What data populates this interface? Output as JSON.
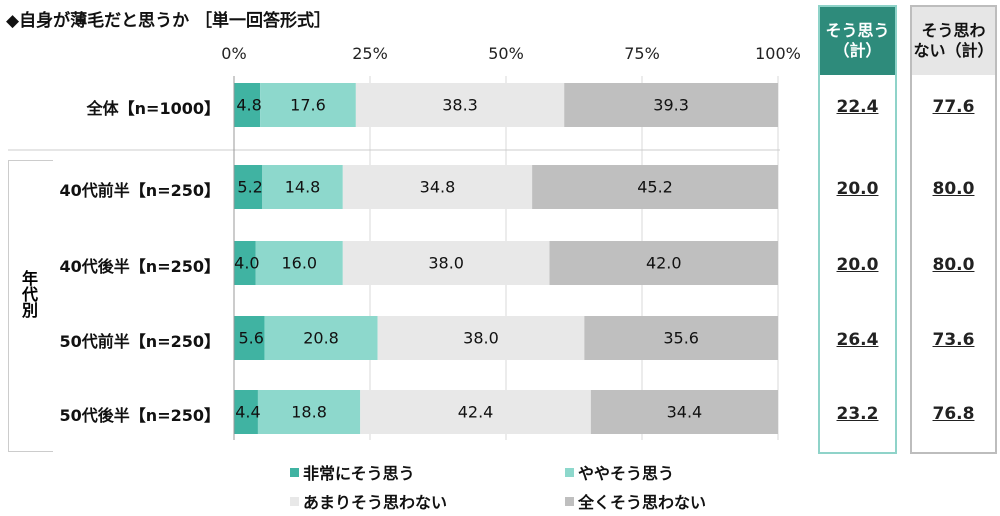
{
  "chart_data": {
    "type": "bar",
    "orientation": "horizontal",
    "stacked": true,
    "title": "◆自身が薄毛だと思うか ［単一回答形式］",
    "xlim": [
      0,
      100
    ],
    "xticks": [
      "0%",
      "25%",
      "50%",
      "75%",
      "100%"
    ],
    "grid": true,
    "group_label": "年代別",
    "categories": [
      "全体【n=1000】",
      "40代前半【n=250】",
      "40代後半【n=250】",
      "50代前半【n=250】",
      "50代後半【n=250】"
    ],
    "series": [
      {
        "name": "非常にそう思う",
        "color": "#40b3a2",
        "values": [
          4.8,
          5.2,
          4.0,
          5.6,
          4.4
        ]
      },
      {
        "name": "ややそう思う",
        "color": "#8dd8cc",
        "values": [
          17.6,
          14.8,
          16.0,
          20.8,
          18.8
        ]
      },
      {
        "name": "あまりそう思わない",
        "color": "#e8e8e8",
        "values": [
          38.3,
          34.8,
          38.0,
          38.0,
          42.4
        ]
      },
      {
        "name": "全くそう思わない",
        "color": "#bfbfbf",
        "values": [
          39.3,
          45.2,
          42.0,
          35.6,
          34.4
        ]
      }
    ],
    "summary": [
      {
        "header": "そう思う\n（計）",
        "color": "#2e8b7b",
        "values": [
          "22.4",
          "20.0",
          "20.0",
          "26.4",
          "23.2"
        ]
      },
      {
        "header": "そう思わ\nない（計）",
        "color": "#e6e6e6",
        "values": [
          "77.6",
          "80.0",
          "80.0",
          "73.6",
          "76.8"
        ]
      }
    ],
    "legend_position": "bottom"
  }
}
